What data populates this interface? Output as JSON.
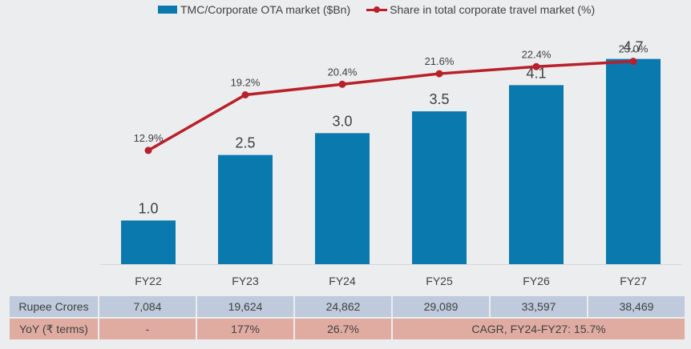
{
  "chart_data": {
    "type": "bar+line",
    "title": "",
    "categories": [
      "FY22",
      "FY23",
      "FY24",
      "FY25",
      "FY26",
      "FY27"
    ],
    "series": [
      {
        "name": "TMC/Corporate OTA market ($Bn)",
        "type": "bar",
        "color": "#0A79AD",
        "values": [
          1.0,
          2.5,
          3.0,
          3.5,
          4.1,
          4.7
        ],
        "labels": [
          "1.0",
          "2.5",
          "3.0",
          "3.5",
          "4.1",
          "4.7"
        ]
      },
      {
        "name": "Share in total corporate travel market (%)",
        "type": "line",
        "color": "#B8202A",
        "values": [
          12.9,
          19.2,
          20.4,
          21.6,
          22.4,
          23.0
        ],
        "labels": [
          "12.9%",
          "19.2%",
          "20.4%",
          "21.6%",
          "22.4%",
          "23.0%"
        ]
      }
    ],
    "xlabel": "",
    "ylabel": "",
    "bar_axis_range": [
      0,
      5.5
    ],
    "line_axis_range": [
      0,
      25.6
    ],
    "grid": false,
    "legend_position": "top"
  },
  "legend": {
    "bar_label": "TMC/Corporate OTA market ($Bn)",
    "line_label": "Share in total corporate travel market (%)"
  },
  "table": {
    "rupee_row": {
      "header": "Rupee Crores",
      "values": [
        "7,084",
        "19,624",
        "24,862",
        "29,089",
        "33,597",
        "38,469"
      ]
    },
    "yoy_row": {
      "header": "YoY (₹ terms)",
      "values": [
        "-",
        "177%",
        "26.7%"
      ],
      "cagr": "CAGR, FY24-FY27: 15.7%"
    }
  }
}
